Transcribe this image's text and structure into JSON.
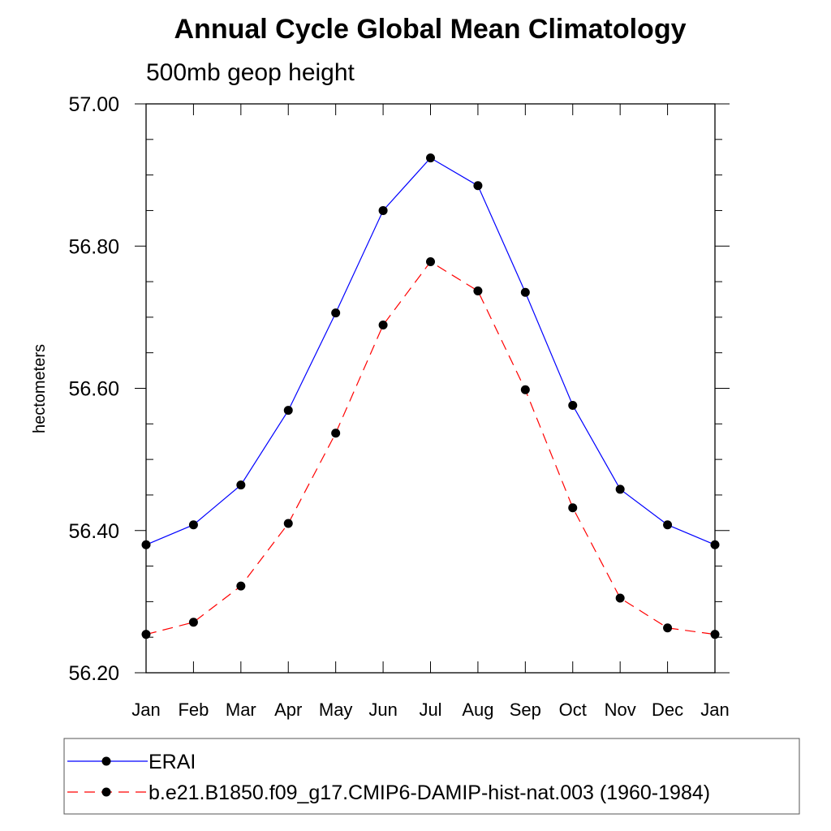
{
  "chart_data": {
    "type": "line",
    "title": "Annual Cycle Global Mean Climatology",
    "subtitle": "500mb geop height",
    "xlabel": "",
    "ylabel": "hectometers",
    "categories": [
      "Jan",
      "Feb",
      "Mar",
      "Apr",
      "May",
      "Jun",
      "Jul",
      "Aug",
      "Sep",
      "Oct",
      "Nov",
      "Dec",
      "Jan"
    ],
    "ylim": [
      56.2,
      57.0
    ],
    "yticks": [
      "56.20",
      "56.40",
      "56.60",
      "56.80",
      "57.00"
    ],
    "grid": false,
    "legend_position": "bottom",
    "series": [
      {
        "name": "ERAI",
        "color": "#0000ff",
        "line_style": "solid",
        "marker": "filled-circle",
        "values": [
          56.38,
          56.408,
          56.464,
          56.569,
          56.706,
          56.85,
          56.924,
          56.885,
          56.735,
          56.576,
          56.458,
          56.408,
          56.38
        ]
      },
      {
        "name": "b.e21.B1850.f09_g17.CMIP6-DAMIP-hist-nat.003 (1960-1984)",
        "color": "#ff0000",
        "line_style": "dashed",
        "marker": "filled-circle",
        "values": [
          56.254,
          56.271,
          56.322,
          56.41,
          56.537,
          56.689,
          56.778,
          56.737,
          56.598,
          56.432,
          56.305,
          56.263,
          56.254
        ]
      }
    ]
  }
}
